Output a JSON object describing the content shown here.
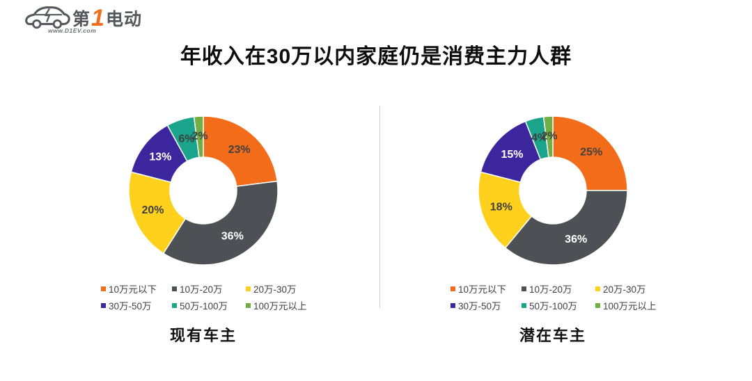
{
  "logo": {
    "brand_prefix": "第",
    "brand_number": "1",
    "brand_suffix": "电动",
    "site": "www.D1EV.com",
    "accent_color": "#F36C1A",
    "ink_color": "#54575B"
  },
  "title": "年收入在30万以内家庭仍是消费主力人群",
  "palette": {
    "slice_colors": [
      "#F36C1A",
      "#4D5156",
      "#FFD11D",
      "#3B269E",
      "#1AA48C",
      "#72AE44"
    ],
    "slice_label_colors": [
      "#404040",
      "#FFFFFF",
      "#404040",
      "#FFFFFF",
      "#3F3F3F",
      "#3F3F3F"
    ],
    "legend_text_color": "#3F3F3F",
    "title_color": "#0D0D0D",
    "panel_name_color": "#111111",
    "divider_color": "#CFCFCF"
  },
  "chart_data": [
    {
      "type": "pie",
      "donut": true,
      "title": "现有车主",
      "categories": [
        "10万元以下",
        "10万-20万",
        "20万-30万",
        "30万-50万",
        "50万-100万",
        "100万元以上"
      ],
      "values": [
        23,
        36,
        20,
        13,
        6,
        2
      ],
      "unit": "%",
      "start_angle_deg": 0,
      "direction": "clockwise",
      "legend_position": "bottom"
    },
    {
      "type": "pie",
      "donut": true,
      "title": "潜在车主",
      "categories": [
        "10万元以下",
        "10万-20万",
        "20万-30万",
        "30万-50万",
        "50万-100万",
        "100万元以上"
      ],
      "values": [
        25,
        36,
        18,
        15,
        4,
        2
      ],
      "unit": "%",
      "start_angle_deg": 0,
      "direction": "clockwise",
      "legend_position": "bottom"
    }
  ]
}
